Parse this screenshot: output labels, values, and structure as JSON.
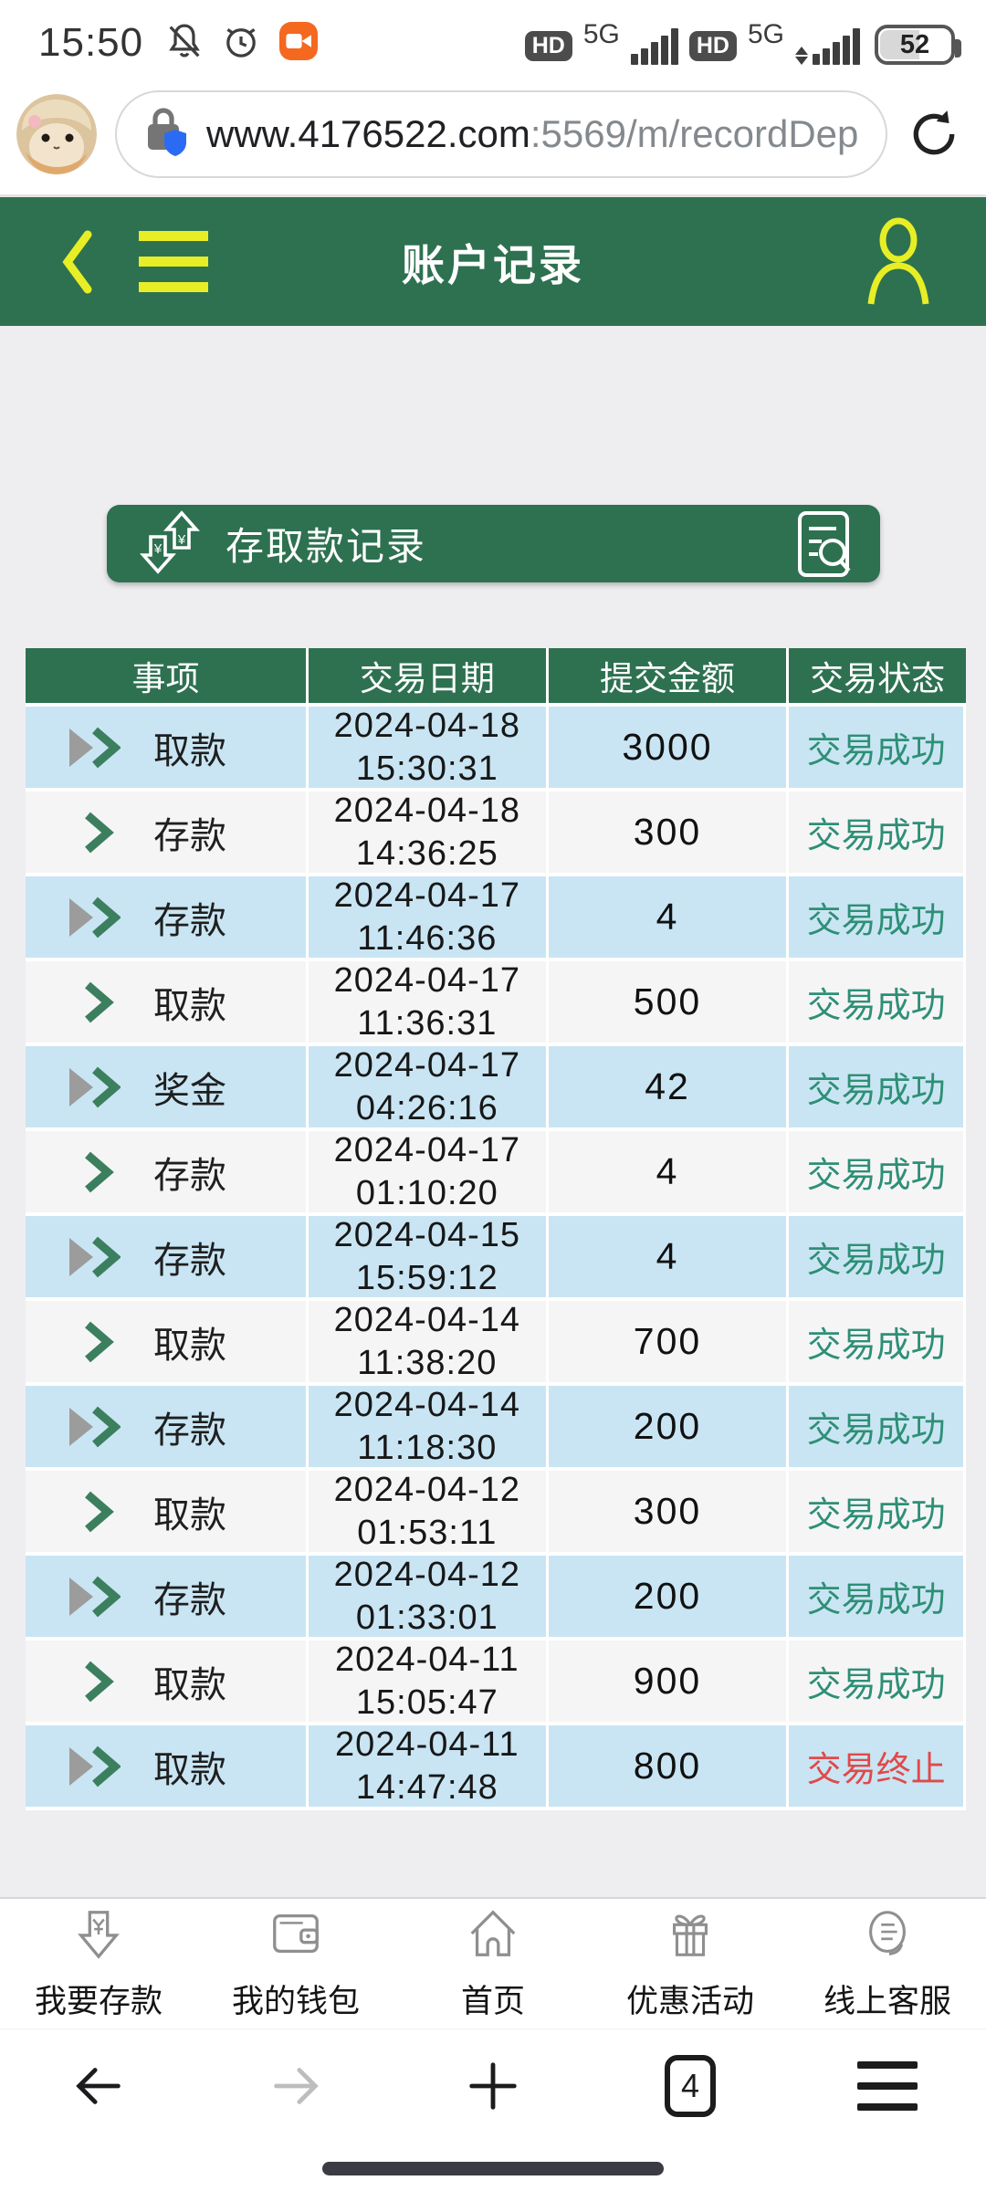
{
  "colors": {
    "header_green": "#2e7150",
    "accent_yellow": "#e7ee25",
    "row_blue": "#c9e5f3",
    "row_light": "#f5f5f6",
    "status_ok": "#2e8f76",
    "status_stop": "#e04a4a",
    "record_badge_orange": "#f4681f"
  },
  "status_bar": {
    "time": "15:50",
    "hd_badge_1": "HD",
    "network_1": "5G",
    "hd_badge_2": "HD",
    "network_2": "5G",
    "battery_percent": "52"
  },
  "browser": {
    "url_host": "www.4176522.com",
    "url_path": ":5569/m/recordDep",
    "tab_count": "4"
  },
  "header": {
    "title": "账户记录"
  },
  "banner": {
    "title": "存取款记录"
  },
  "table": {
    "headers": [
      "事项",
      "交易日期",
      "提交金额",
      "交易状态"
    ],
    "rows": [
      {
        "type": "取款",
        "date": "2024-04-18",
        "time": "15:30:31",
        "amount": "3000",
        "status": "交易成功",
        "ok": true
      },
      {
        "type": "存款",
        "date": "2024-04-18",
        "time": "14:36:25",
        "amount": "300",
        "status": "交易成功",
        "ok": true
      },
      {
        "type": "存款",
        "date": "2024-04-17",
        "time": "11:46:36",
        "amount": "4",
        "status": "交易成功",
        "ok": true
      },
      {
        "type": "取款",
        "date": "2024-04-17",
        "time": "11:36:31",
        "amount": "500",
        "status": "交易成功",
        "ok": true
      },
      {
        "type": "奖金",
        "date": "2024-04-17",
        "time": "04:26:16",
        "amount": "42",
        "status": "交易成功",
        "ok": true
      },
      {
        "type": "存款",
        "date": "2024-04-17",
        "time": "01:10:20",
        "amount": "4",
        "status": "交易成功",
        "ok": true
      },
      {
        "type": "存款",
        "date": "2024-04-15",
        "time": "15:59:12",
        "amount": "4",
        "status": "交易成功",
        "ok": true
      },
      {
        "type": "取款",
        "date": "2024-04-14",
        "time": "11:38:20",
        "amount": "700",
        "status": "交易成功",
        "ok": true
      },
      {
        "type": "存款",
        "date": "2024-04-14",
        "time": "11:18:30",
        "amount": "200",
        "status": "交易成功",
        "ok": true
      },
      {
        "type": "取款",
        "date": "2024-04-12",
        "time": "01:53:11",
        "amount": "300",
        "status": "交易成功",
        "ok": true
      },
      {
        "type": "存款",
        "date": "2024-04-12",
        "time": "01:33:01",
        "amount": "200",
        "status": "交易成功",
        "ok": true
      },
      {
        "type": "取款",
        "date": "2024-04-11",
        "time": "15:05:47",
        "amount": "900",
        "status": "交易成功",
        "ok": true
      },
      {
        "type": "取款",
        "date": "2024-04-11",
        "time": "14:47:48",
        "amount": "800",
        "status": "交易终止",
        "ok": false
      }
    ]
  },
  "bottom_nav": {
    "items": [
      {
        "label": "我要存款",
        "icon": "deposit-icon"
      },
      {
        "label": "我的钱包",
        "icon": "wallet-icon"
      },
      {
        "label": "首页",
        "icon": "home-icon"
      },
      {
        "label": "优惠活动",
        "icon": "promo-icon"
      },
      {
        "label": "线上客服",
        "icon": "customer-service-icon"
      }
    ]
  }
}
